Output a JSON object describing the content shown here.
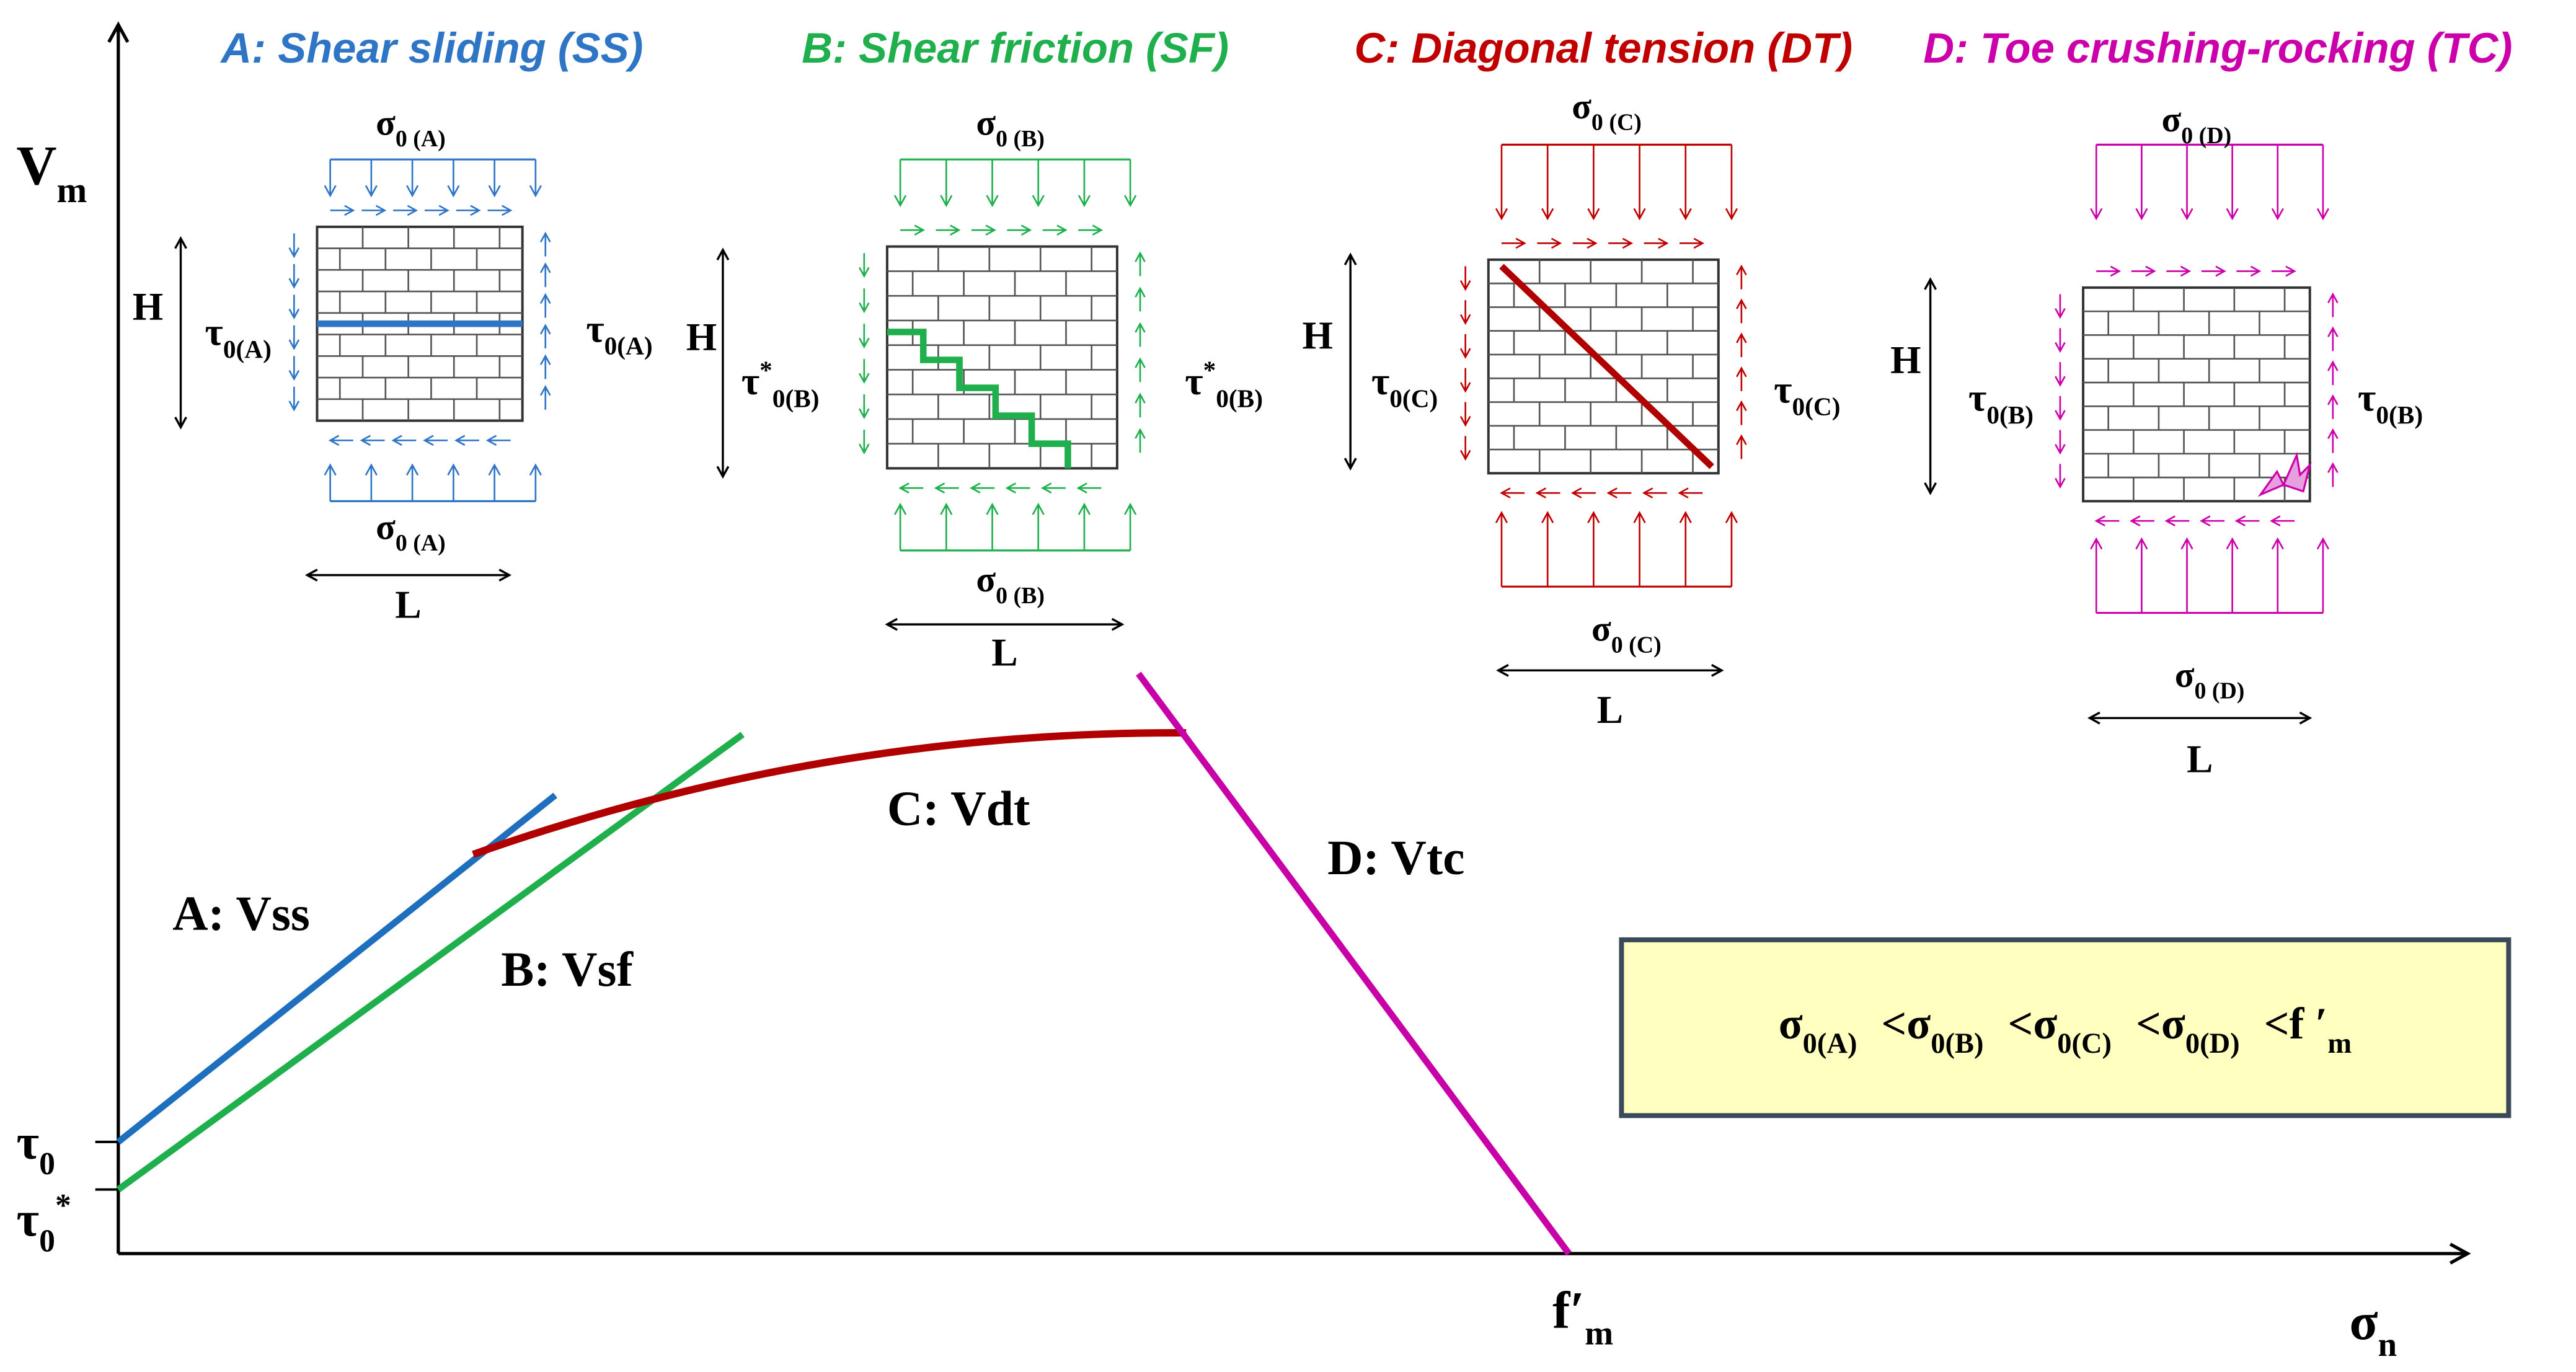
{
  "axes": {
    "y": {
      "symbol": "V",
      "sub": "m"
    },
    "x": {
      "symbol": "σ",
      "sub": "n"
    },
    "ticks": [
      {
        "symbol": "τ",
        "sub": "0"
      },
      {
        "symbol": "τ",
        "sub": "0",
        "sup": "*"
      },
      {
        "symbol": "f′",
        "sub": "m"
      }
    ]
  },
  "curves": [
    {
      "label": "A: Vss",
      "color": "#1f6fbf"
    },
    {
      "label": "B: Vsf",
      "color": "#1fb04d"
    },
    {
      "label": "C: Vdt",
      "color": "#b00000"
    },
    {
      "label": "D: Vtc",
      "color": "#c800a8"
    }
  ],
  "panels": [
    {
      "title": "A: Shear sliding (SS)",
      "color": "#2e75c6",
      "sigma_top": {
        "symbol": "σ",
        "sub": "0 (A)"
      },
      "sigma_bottom": {
        "symbol": "σ",
        "sub": "0 (A)"
      },
      "tau_left": {
        "symbol": "τ",
        "sub": "0(A)"
      },
      "tau_right": {
        "symbol": "τ",
        "sub": "0(A)"
      },
      "height": "H",
      "length": "L"
    },
    {
      "title": "B: Shear friction (SF)",
      "color": "#1fb04d",
      "sigma_top": {
        "symbol": "σ",
        "sub": "0 (B)"
      },
      "sigma_bottom": {
        "symbol": "σ",
        "sub": "0 (B)"
      },
      "tau_left": {
        "symbol": "τ",
        "sup": "*",
        "sub": "0(B)"
      },
      "tau_right": {
        "symbol": "τ",
        "sup": "*",
        "sub": "0(B)"
      },
      "height": "H",
      "length": "L"
    },
    {
      "title": "C: Diagonal tension (DT)",
      "color": "#c00000",
      "sigma_top": {
        "symbol": "σ",
        "sub": "0 (C)"
      },
      "sigma_bottom": {
        "symbol": "σ",
        "sub": "0 (C)"
      },
      "tau_left": {
        "symbol": "τ",
        "sub": "0(C)"
      },
      "tau_right": {
        "symbol": "τ",
        "sub": "0(C)"
      },
      "height": "H",
      "length": "L"
    },
    {
      "title": "D: Toe crushing-rocking (TC)",
      "color": "#cc00aa",
      "sigma_top": {
        "symbol": "σ",
        "sub": "0 (D)"
      },
      "sigma_bottom": {
        "symbol": "σ",
        "sub": "0 (D)"
      },
      "tau_left": {
        "symbol": "τ",
        "sub": "0(B)"
      },
      "tau_right": {
        "symbol": "τ",
        "sub": "0(B)"
      },
      "height": "H",
      "length": "L"
    }
  ],
  "box": {
    "operator": "<",
    "terms": [
      {
        "symbol": "σ",
        "sub": "0(A)"
      },
      {
        "symbol": "σ",
        "sub": "0(B)"
      },
      {
        "symbol": "σ",
        "sub": "0(C)"
      },
      {
        "symbol": "σ",
        "sub": "0(D)"
      },
      {
        "symbol": "f ′",
        "sub": "m"
      }
    ]
  }
}
